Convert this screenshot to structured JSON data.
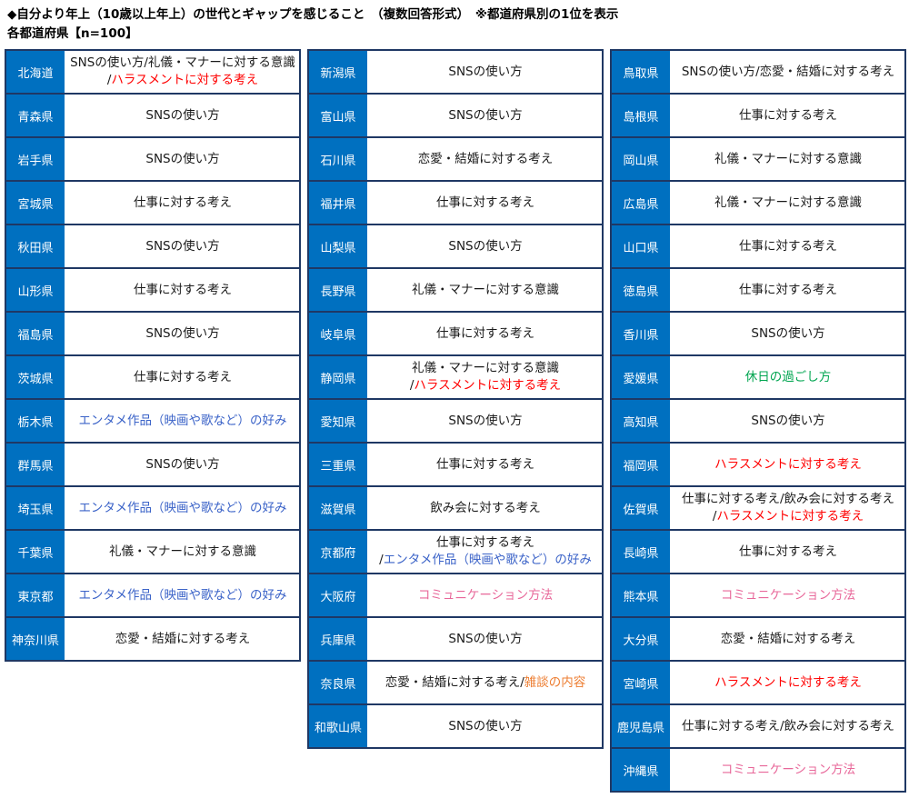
{
  "header": {
    "title": "◆自分より年上（10歳以上年上）の世代とギャップを感じること　（複数回答形式）　※都道府県別の1位を表示",
    "subtitle": "各都道府県【n=100】"
  },
  "colors": {
    "black": "#1a1a1a",
    "red": "#FF0000",
    "blue": "#3B63C8",
    "pink": "#E8689A",
    "orange": "#ED7D31",
    "green": "#00A550",
    "cell_blue": "#0070C0",
    "border_navy": "#1F3864"
  },
  "tables": [
    {
      "rows": [
        {
          "pref": "北海道",
          "lines": [
            [
              {
                "t": "SNSの使い方/礼儀・マナーに対する意識"
              }
            ],
            [
              {
                "t": "/"
              },
              {
                "t": "ハラスメントに対する考え",
                "c": "red"
              }
            ]
          ]
        },
        {
          "pref": "青森県",
          "lines": [
            [
              {
                "t": "SNSの使い方"
              }
            ]
          ]
        },
        {
          "pref": "岩手県",
          "lines": [
            [
              {
                "t": "SNSの使い方"
              }
            ]
          ]
        },
        {
          "pref": "宮城県",
          "lines": [
            [
              {
                "t": "仕事に対する考え"
              }
            ]
          ]
        },
        {
          "pref": "秋田県",
          "lines": [
            [
              {
                "t": "SNSの使い方"
              }
            ]
          ]
        },
        {
          "pref": "山形県",
          "lines": [
            [
              {
                "t": "仕事に対する考え"
              }
            ]
          ]
        },
        {
          "pref": "福島県",
          "lines": [
            [
              {
                "t": "SNSの使い方"
              }
            ]
          ]
        },
        {
          "pref": "茨城県",
          "lines": [
            [
              {
                "t": "仕事に対する考え"
              }
            ]
          ]
        },
        {
          "pref": "栃木県",
          "lines": [
            [
              {
                "t": "エンタメ作品（映画や歌など）の好み",
                "c": "blue"
              }
            ]
          ]
        },
        {
          "pref": "群馬県",
          "lines": [
            [
              {
                "t": "SNSの使い方"
              }
            ]
          ]
        },
        {
          "pref": "埼玉県",
          "lines": [
            [
              {
                "t": "エンタメ作品（映画や歌など）の好み",
                "c": "blue"
              }
            ]
          ]
        },
        {
          "pref": "千葉県",
          "lines": [
            [
              {
                "t": "礼儀・マナーに対する意識"
              }
            ]
          ]
        },
        {
          "pref": "東京都",
          "lines": [
            [
              {
                "t": "エンタメ作品（映画や歌など）の好み",
                "c": "blue"
              }
            ]
          ]
        },
        {
          "pref": "神奈川県",
          "lines": [
            [
              {
                "t": "恋愛・結婚に対する考え"
              }
            ]
          ]
        }
      ]
    },
    {
      "rows": [
        {
          "pref": "新潟県",
          "lines": [
            [
              {
                "t": "SNSの使い方"
              }
            ]
          ]
        },
        {
          "pref": "富山県",
          "lines": [
            [
              {
                "t": "SNSの使い方"
              }
            ]
          ]
        },
        {
          "pref": "石川県",
          "lines": [
            [
              {
                "t": "恋愛・結婚に対する考え"
              }
            ]
          ]
        },
        {
          "pref": "福井県",
          "lines": [
            [
              {
                "t": "仕事に対する考え"
              }
            ]
          ]
        },
        {
          "pref": "山梨県",
          "lines": [
            [
              {
                "t": "SNSの使い方"
              }
            ]
          ]
        },
        {
          "pref": "長野県",
          "lines": [
            [
              {
                "t": "礼儀・マナーに対する意識"
              }
            ]
          ]
        },
        {
          "pref": "岐阜県",
          "lines": [
            [
              {
                "t": "仕事に対する考え"
              }
            ]
          ]
        },
        {
          "pref": "静岡県",
          "lines": [
            [
              {
                "t": "礼儀・マナーに対する意識"
              }
            ],
            [
              {
                "t": "/"
              },
              {
                "t": "ハラスメントに対する考え",
                "c": "red"
              }
            ]
          ]
        },
        {
          "pref": "愛知県",
          "lines": [
            [
              {
                "t": "SNSの使い方"
              }
            ]
          ]
        },
        {
          "pref": "三重県",
          "lines": [
            [
              {
                "t": "仕事に対する考え"
              }
            ]
          ]
        },
        {
          "pref": "滋賀県",
          "lines": [
            [
              {
                "t": "飲み会に対する考え"
              }
            ]
          ]
        },
        {
          "pref": "京都府",
          "lines": [
            [
              {
                "t": "仕事に対する考え"
              }
            ],
            [
              {
                "t": "/"
              },
              {
                "t": "エンタメ作品（映画や歌など）の好み",
                "c": "blue"
              }
            ]
          ]
        },
        {
          "pref": "大阪府",
          "lines": [
            [
              {
                "t": "コミュニケーション方法",
                "c": "pink"
              }
            ]
          ]
        },
        {
          "pref": "兵庫県",
          "lines": [
            [
              {
                "t": "SNSの使い方"
              }
            ]
          ]
        },
        {
          "pref": "奈良県",
          "lines": [
            [
              {
                "t": "恋愛・結婚に対する考え/"
              },
              {
                "t": "雑談の内容",
                "c": "orange"
              }
            ]
          ]
        },
        {
          "pref": "和歌山県",
          "lines": [
            [
              {
                "t": "SNSの使い方"
              }
            ]
          ]
        }
      ]
    },
    {
      "rows": [
        {
          "pref": "鳥取県",
          "lines": [
            [
              {
                "t": "SNSの使い方/恋愛・結婚に対する考え"
              }
            ]
          ]
        },
        {
          "pref": "島根県",
          "lines": [
            [
              {
                "t": "仕事に対する考え"
              }
            ]
          ]
        },
        {
          "pref": "岡山県",
          "lines": [
            [
              {
                "t": "礼儀・マナーに対する意識"
              }
            ]
          ]
        },
        {
          "pref": "広島県",
          "lines": [
            [
              {
                "t": "礼儀・マナーに対する意識"
              }
            ]
          ]
        },
        {
          "pref": "山口県",
          "lines": [
            [
              {
                "t": "仕事に対する考え"
              }
            ]
          ]
        },
        {
          "pref": "徳島県",
          "lines": [
            [
              {
                "t": "仕事に対する考え"
              }
            ]
          ]
        },
        {
          "pref": "香川県",
          "lines": [
            [
              {
                "t": "SNSの使い方"
              }
            ]
          ]
        },
        {
          "pref": "愛媛県",
          "lines": [
            [
              {
                "t": "休日の過ごし方",
                "c": "green"
              }
            ]
          ]
        },
        {
          "pref": "高知県",
          "lines": [
            [
              {
                "t": "SNSの使い方"
              }
            ]
          ]
        },
        {
          "pref": "福岡県",
          "lines": [
            [
              {
                "t": "ハラスメントに対する考え",
                "c": "red"
              }
            ]
          ]
        },
        {
          "pref": "佐賀県",
          "lines": [
            [
              {
                "t": "仕事に対する考え/飲み会に対する考え"
              }
            ],
            [
              {
                "t": "/"
              },
              {
                "t": "ハラスメントに対する考え",
                "c": "red"
              }
            ]
          ]
        },
        {
          "pref": "長崎県",
          "lines": [
            [
              {
                "t": "仕事に対する考え"
              }
            ]
          ]
        },
        {
          "pref": "熊本県",
          "lines": [
            [
              {
                "t": "コミュニケーション方法",
                "c": "pink"
              }
            ]
          ]
        },
        {
          "pref": "大分県",
          "lines": [
            [
              {
                "t": "恋愛・結婚に対する考え"
              }
            ]
          ]
        },
        {
          "pref": "宮崎県",
          "lines": [
            [
              {
                "t": "ハラスメントに対する考え",
                "c": "red"
              }
            ]
          ]
        },
        {
          "pref": "鹿児島県",
          "lines": [
            [
              {
                "t": "仕事に対する考え/飲み会に対する考え"
              }
            ]
          ]
        },
        {
          "pref": "沖縄県",
          "lines": [
            [
              {
                "t": "コミュニケーション方法",
                "c": "pink"
              }
            ]
          ]
        }
      ]
    }
  ]
}
